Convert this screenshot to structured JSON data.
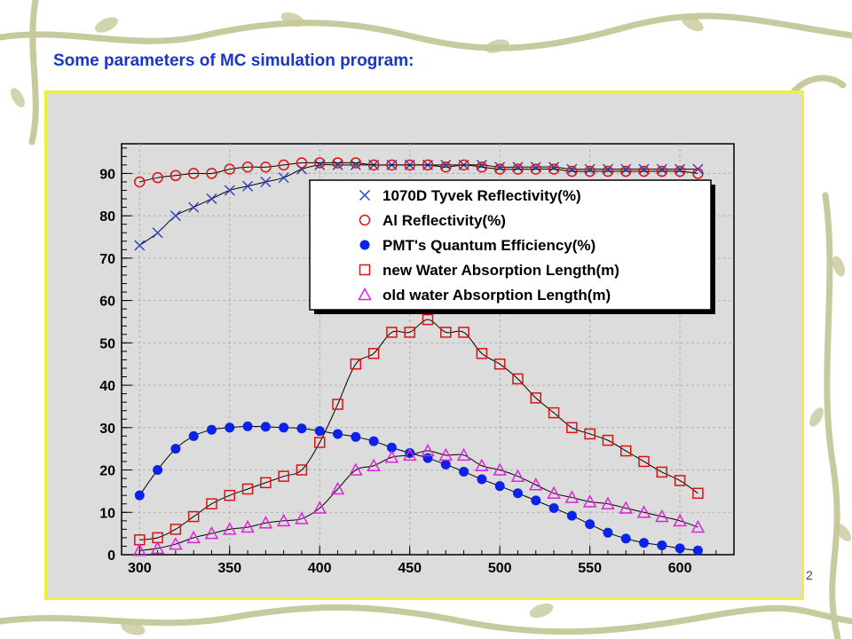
{
  "slide": {
    "title": "Some parameters of MC simulation program:",
    "page_number": "2"
  },
  "colors": {
    "title": "#1836c8",
    "frame_border": "#f2ef3c",
    "plot_background": "#dcdcdc",
    "grid": "#b0b0b0",
    "tyvek": "#2a3fc4",
    "al": "#e01010",
    "pmt": "#0b22e8",
    "new_water": "#e01010",
    "old_water": "#e020e0",
    "decor_vine": "#c6ca9c"
  },
  "chart_data": {
    "type": "line",
    "title": "",
    "xlabel": "",
    "ylabel": "",
    "xlim": [
      290,
      630
    ],
    "ylim": [
      0,
      97
    ],
    "grid": true,
    "legend_position": "top-right",
    "x_ticks": [
      300,
      350,
      400,
      450,
      500,
      550,
      600
    ],
    "y_ticks": [
      0,
      10,
      20,
      30,
      40,
      50,
      60,
      70,
      80,
      90
    ],
    "x": [
      300,
      310,
      320,
      330,
      340,
      350,
      360,
      370,
      380,
      390,
      400,
      410,
      420,
      430,
      440,
      450,
      460,
      470,
      480,
      490,
      500,
      510,
      520,
      530,
      540,
      550,
      560,
      570,
      580,
      590,
      600,
      610
    ],
    "series": [
      {
        "name": "1070D Tyvek Reflectivity(%)",
        "marker": "x",
        "color": "#2a3fc4",
        "values": [
          73,
          76,
          80,
          82,
          84,
          86,
          87,
          88,
          89,
          91,
          92,
          92,
          92,
          92,
          92,
          92,
          92,
          92,
          92,
          92,
          91.5,
          91.5,
          91.5,
          91.5,
          91,
          91,
          91,
          91,
          91,
          91,
          91,
          91
        ]
      },
      {
        "name": "Al Reflectivity(%)",
        "marker": "circle-open",
        "color": "#e01010",
        "values": [
          88,
          89,
          89.5,
          90,
          90,
          91,
          91.5,
          91.5,
          92,
          92.5,
          92.5,
          92.5,
          92.5,
          92,
          92,
          92,
          92,
          91.5,
          92,
          91.5,
          91,
          91,
          91,
          91,
          90.5,
          90.5,
          90.5,
          90.5,
          90.5,
          90.5,
          90.5,
          90
        ]
      },
      {
        "name": "PMT's Quantum Efficiency(%)",
        "marker": "circle-filled",
        "color": "#0b22e8",
        "values": [
          14,
          20,
          25,
          28,
          29.5,
          30,
          30.3,
          30.2,
          30,
          29.8,
          29.2,
          28.5,
          27.8,
          26.8,
          25.3,
          24,
          22.8,
          21.3,
          19.6,
          17.8,
          16.2,
          14.5,
          12.8,
          11,
          9.2,
          7.2,
          5.2,
          3.8,
          2.8,
          2.2,
          1.5,
          1
        ]
      },
      {
        "name": "new Water Absorption Length(m)",
        "marker": "square-open",
        "color": "#e01010",
        "values": [
          3.5,
          4,
          6,
          9,
          12,
          14,
          15.5,
          17,
          18.5,
          20,
          26.5,
          35.5,
          45,
          47.5,
          52.5,
          52.5,
          55.5,
          52.5,
          52.5,
          47.5,
          45,
          41.5,
          37,
          33.5,
          30,
          28.5,
          27,
          24.5,
          22,
          19.5,
          17.5,
          14.5
        ]
      },
      {
        "name": "old water Absorption Length(m)",
        "marker": "triangle-open",
        "color": "#e020e0",
        "values": [
          1,
          1.5,
          2.5,
          4,
          5,
          6,
          6.5,
          7.5,
          8,
          8.5,
          11,
          15.5,
          20,
          21,
          23,
          23.5,
          24.5,
          23.5,
          23.5,
          21,
          20,
          18.5,
          16.5,
          14.5,
          13.5,
          12.5,
          12,
          11,
          10,
          9,
          8,
          6.5
        ]
      }
    ]
  }
}
